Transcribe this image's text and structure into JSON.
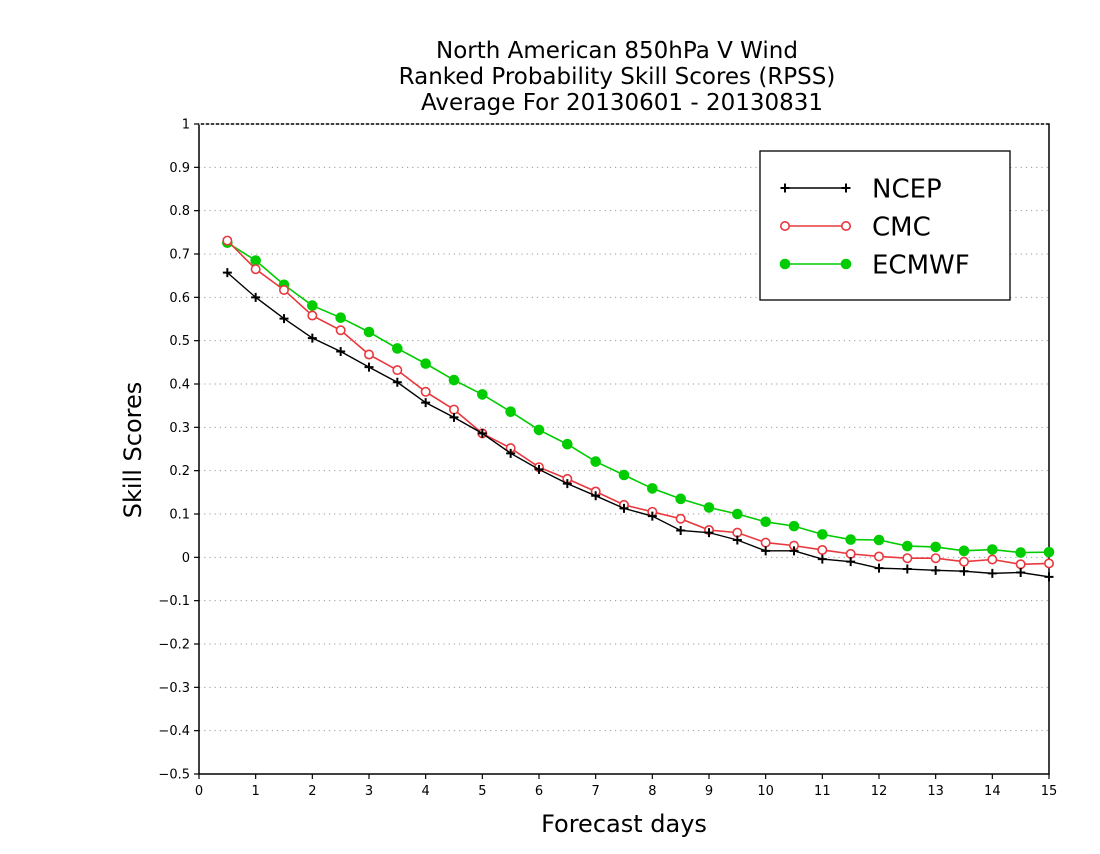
{
  "chart_data": {
    "type": "line",
    "title_lines": [
      "North American 850hPa V Wind",
      "Ranked Probability Skill Scores (RPSS)",
      "Average For 20130601 - 20130831"
    ],
    "xlabel": "Forecast days",
    "ylabel": "Skill Scores",
    "xlim": [
      0,
      15
    ],
    "ylim": [
      -0.5,
      1
    ],
    "x_ticks": [
      0,
      1,
      2,
      3,
      4,
      5,
      6,
      7,
      8,
      9,
      10,
      11,
      12,
      13,
      14,
      15
    ],
    "y_ticks": [
      -0.5,
      -0.4,
      -0.3,
      -0.2,
      -0.1,
      0,
      0.1,
      0.2,
      0.3,
      0.4,
      0.5,
      0.6,
      0.7,
      0.8,
      0.9,
      1
    ],
    "y_tick_labels": [
      "−0.5",
      "−0.4",
      "−0.3",
      "−0.2",
      "−0.1",
      "0",
      "0.1",
      "0.2",
      "0.3",
      "0.4",
      "0.5",
      "0.6",
      "0.7",
      "0.8",
      "0.9",
      "1"
    ],
    "grid": "horizontal dotted",
    "legend_position": "top-right",
    "x": [
      0.5,
      1,
      1.5,
      2,
      2.5,
      3,
      3.5,
      4,
      4.5,
      5,
      5.5,
      6,
      6.5,
      7,
      7.5,
      8,
      8.5,
      9,
      9.5,
      10,
      10.5,
      11,
      11.5,
      12,
      12.5,
      13,
      13.5,
      14,
      14.5,
      15
    ],
    "series": [
      {
        "name": "NCEP",
        "color": "#000000",
        "marker": "plus",
        "values": [
          0.657,
          0.6,
          0.551,
          0.506,
          0.475,
          0.439,
          0.404,
          0.357,
          0.323,
          0.286,
          0.24,
          0.203,
          0.17,
          0.142,
          0.113,
          0.095,
          0.062,
          0.057,
          0.04,
          0.015,
          0.015,
          -0.004,
          -0.01,
          -0.025,
          -0.027,
          -0.03,
          -0.032,
          -0.037,
          -0.035,
          -0.045
        ]
      },
      {
        "name": "CMC",
        "color": "#e8383d",
        "marker": "open-circle",
        "values": [
          0.731,
          0.665,
          0.617,
          0.558,
          0.524,
          0.468,
          0.432,
          0.382,
          0.341,
          0.286,
          0.252,
          0.208,
          0.181,
          0.152,
          0.121,
          0.105,
          0.089,
          0.063,
          0.057,
          0.034,
          0.027,
          0.017,
          0.008,
          0.002,
          -0.002,
          -0.002,
          -0.01,
          -0.005,
          -0.016,
          -0.014
        ]
      },
      {
        "name": "ECMWF",
        "color": "#00cc00",
        "marker": "filled-circle",
        "values": [
          0.726,
          0.685,
          0.629,
          0.581,
          0.553,
          0.52,
          0.482,
          0.447,
          0.409,
          0.376,
          0.336,
          0.294,
          0.261,
          0.221,
          0.19,
          0.159,
          0.135,
          0.115,
          0.1,
          0.082,
          0.072,
          0.053,
          0.041,
          0.04,
          0.026,
          0.024,
          0.015,
          0.018,
          0.011,
          0.012
        ]
      }
    ]
  }
}
